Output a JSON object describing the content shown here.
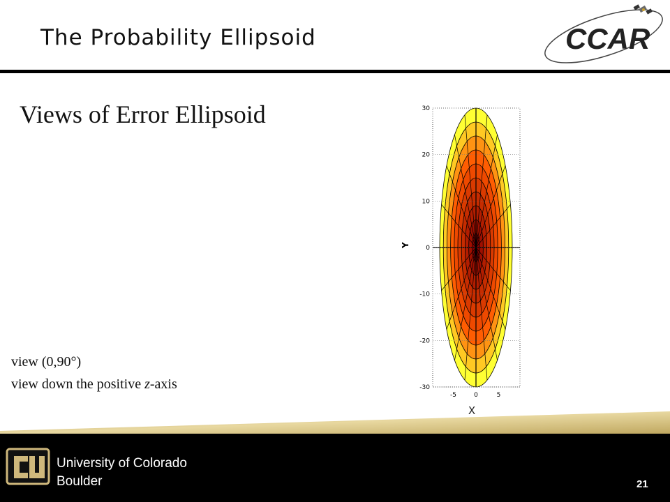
{
  "slide": {
    "title": "The Probability Ellipsoid",
    "heading": "Views of Error Ellipsoid",
    "caption_line1": "view (0,90°)",
    "caption_line2_prefix": "view down the positive ",
    "caption_line2_italic": "z",
    "caption_line2_suffix": "-axis",
    "page_number": "21"
  },
  "logo": {
    "text": "CCAR"
  },
  "footer": {
    "line1": "University of Colorado",
    "line2": "Boulder"
  },
  "plot": {
    "xlabel": "X",
    "ylabel": "Y",
    "x_ticks": [
      "-5",
      "0",
      "5"
    ],
    "y_ticks": [
      "30",
      "20",
      "10",
      "0",
      "-10",
      "-20",
      "-30"
    ],
    "x_semi_axis": 8,
    "y_semi_axis": 30,
    "colors": {
      "outer": "#ffff33",
      "mid": "#ff5500",
      "inner": "#8b0000",
      "grid": "#000000"
    }
  },
  "colors": {
    "gold": "#cfb87c",
    "footer_bg": "#000000"
  }
}
